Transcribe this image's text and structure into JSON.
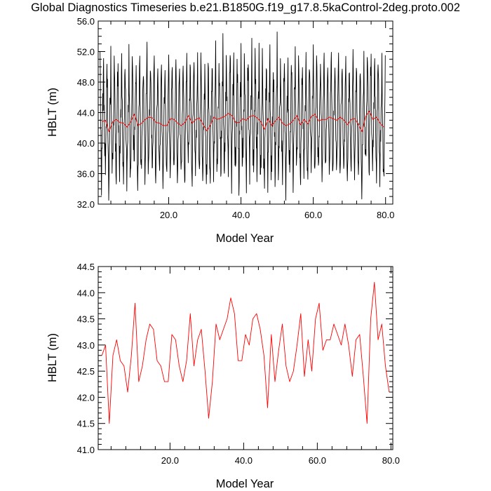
{
  "title": "Global Diagnostics Timeseries b.e21.B1850G.f19_g17.8.5kaControl-2deg.proto.002",
  "colors": {
    "monthly": "#000000",
    "annual": "#ff0000"
  },
  "chart_data": [
    {
      "type": "line",
      "xlabel": "Model Year",
      "ylabel": "HBLT (m)",
      "xlim": [
        0.5,
        82.0
      ],
      "ylim": [
        32.0,
        56.0
      ],
      "xticks": [
        "20.0",
        "40.0",
        "60.0",
        "80.0"
      ],
      "yticks": [
        "32.0",
        "36.0",
        "40.0",
        "44.0",
        "48.0",
        "52.0",
        "56.0"
      ],
      "grid": false,
      "series": [
        {
          "color": "#000000",
          "resolution": "monthly",
          "approx_range": [
            32.5,
            55.5
          ],
          "seasonal_cycle": [
            51.0,
            47.5,
            44.0,
            41.0,
            38.5,
            36.5,
            37.5,
            40.0,
            42.5,
            45.0,
            47.0,
            49.5
          ]
        },
        {
          "color": "#ff0000",
          "resolution": "annual",
          "values": [
            42.8,
            43.0,
            41.5,
            42.8,
            43.1,
            42.7,
            42.6,
            42.1,
            42.8,
            43.8,
            42.3,
            42.6,
            43.1,
            43.4,
            43.3,
            42.7,
            42.6,
            42.3,
            42.3,
            43.2,
            43.1,
            42.6,
            42.3,
            42.7,
            43.6,
            42.6,
            43.1,
            43.3,
            42.5,
            41.6,
            42.3,
            43.4,
            43.1,
            43.3,
            43.5,
            43.9,
            43.6,
            42.7,
            42.7,
            43.2,
            43.0,
            43.5,
            43.6,
            43.3,
            42.8,
            41.8,
            43.2,
            42.3,
            42.9,
            43.4,
            42.6,
            42.3,
            42.5,
            43.0,
            43.6,
            42.4,
            43.1,
            42.5,
            43.5,
            43.8,
            42.9,
            43.1,
            43.1,
            43.4,
            43.2,
            43.0,
            43.4,
            43.0,
            42.4,
            43.1,
            43.2,
            42.4,
            41.5,
            43.5,
            44.2,
            43.1,
            43.4,
            42.6,
            42.1
          ]
        }
      ]
    },
    {
      "type": "line",
      "xlabel": "Model Year",
      "ylabel": "HBLT (m)",
      "xlim": [
        0.5,
        80.5
      ],
      "ylim": [
        41.0,
        44.5
      ],
      "xticks": [
        "20.0",
        "40.0",
        "60.0",
        "80.0"
      ],
      "yticks": [
        "41.0",
        "41.5",
        "42.0",
        "42.5",
        "43.0",
        "43.5",
        "44.0",
        "44.5"
      ],
      "grid": false,
      "series": [
        {
          "color": "#ff0000",
          "resolution": "annual",
          "values": [
            42.8,
            43.0,
            41.5,
            42.8,
            43.1,
            42.7,
            42.6,
            42.1,
            42.8,
            43.8,
            42.3,
            42.6,
            43.1,
            43.4,
            43.3,
            42.7,
            42.6,
            42.3,
            42.3,
            43.2,
            43.1,
            42.6,
            42.3,
            42.7,
            43.6,
            42.6,
            43.1,
            43.3,
            42.5,
            41.6,
            42.3,
            43.4,
            43.1,
            43.3,
            43.5,
            43.9,
            43.6,
            42.7,
            42.7,
            43.2,
            43.0,
            43.5,
            43.6,
            43.3,
            42.8,
            41.8,
            43.2,
            42.3,
            42.9,
            43.4,
            42.6,
            42.3,
            42.5,
            43.0,
            43.6,
            42.4,
            43.1,
            42.5,
            43.5,
            43.8,
            42.9,
            43.1,
            43.1,
            43.4,
            43.2,
            43.0,
            43.4,
            43.0,
            42.4,
            43.1,
            43.2,
            42.4,
            41.5,
            43.5,
            44.2,
            43.1,
            43.4,
            42.6,
            42.1
          ]
        }
      ]
    }
  ]
}
